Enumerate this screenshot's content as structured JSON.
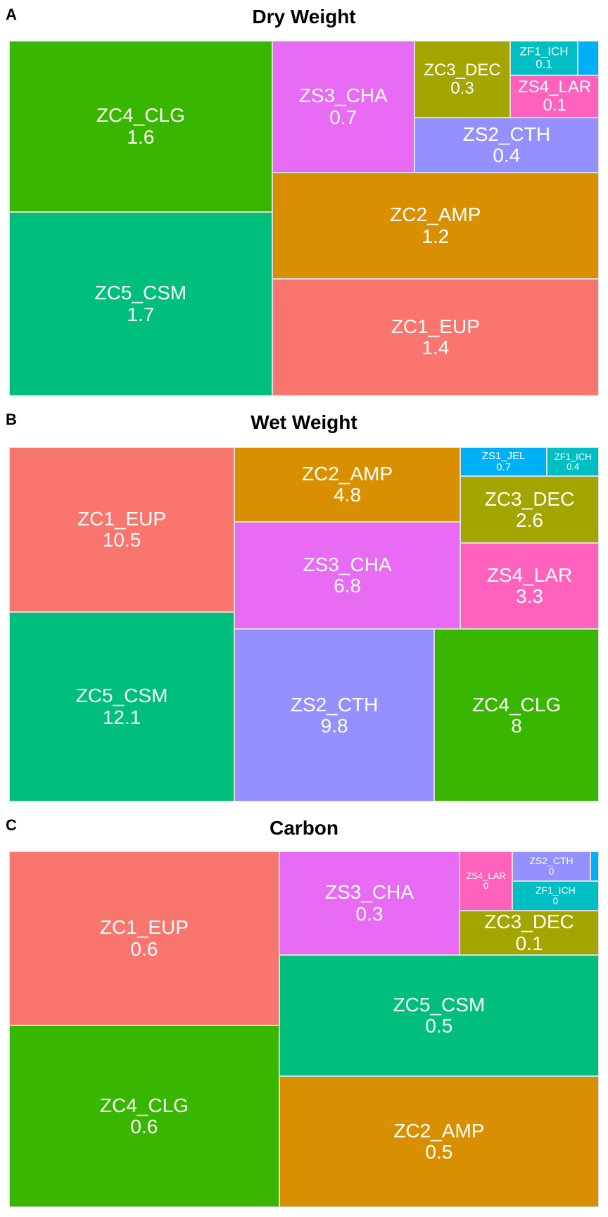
{
  "chart_data": [
    {
      "type": "treemap",
      "panel_label": "A",
      "title": "Dry Weight",
      "tiles": [
        {
          "name": "ZC5_CSM",
          "value_label": "1.7",
          "value": 1.7,
          "color": "#00BF7D"
        },
        {
          "name": "ZC4_CLG",
          "value_label": "1.6",
          "value": 1.6,
          "color": "#39B600"
        },
        {
          "name": "ZC1_EUP",
          "value_label": "1.4",
          "value": 1.4,
          "color": "#F8766D"
        },
        {
          "name": "ZC2_AMP",
          "value_label": "1.2",
          "value": 1.2,
          "color": "#D89000"
        },
        {
          "name": "ZS3_CHA",
          "value_label": "0.7",
          "value": 0.7,
          "color": "#E76BF3"
        },
        {
          "name": "ZS2_CTH",
          "value_label": "0.4",
          "value": 0.4,
          "color": "#9590FF"
        },
        {
          "name": "ZC3_DEC",
          "value_label": "0.3",
          "value": 0.3,
          "color": "#A3A500"
        },
        {
          "name": "ZS4_LAR",
          "value_label": "0.1",
          "value": 0.1,
          "color": "#FF62BC"
        },
        {
          "name": "ZF1_ICH",
          "value_label": "0.1",
          "value": 0.1,
          "color": "#00BFC4"
        },
        {
          "name": "",
          "value_label": "",
          "value": 0.03,
          "color": "#00B0F6"
        }
      ]
    },
    {
      "type": "treemap",
      "panel_label": "B",
      "title": "Wet Weight",
      "tiles": [
        {
          "name": "ZC5_CSM",
          "value_label": "12.1",
          "value": 12.1,
          "color": "#00BF7D"
        },
        {
          "name": "ZC1_EUP",
          "value_label": "10.5",
          "value": 10.5,
          "color": "#F8766D"
        },
        {
          "name": "ZS2_CTH",
          "value_label": "9.8",
          "value": 9.8,
          "color": "#9590FF"
        },
        {
          "name": "ZC4_CLG",
          "value_label": "8",
          "value": 8,
          "color": "#39B600"
        },
        {
          "name": "ZS3_CHA",
          "value_label": "6.8",
          "value": 6.8,
          "color": "#E76BF3"
        },
        {
          "name": "ZC2_AMP",
          "value_label": "4.8",
          "value": 4.8,
          "color": "#D89000"
        },
        {
          "name": "ZS4_LAR",
          "value_label": "3.3",
          "value": 3.3,
          "color": "#FF62BC"
        },
        {
          "name": "ZC3_DEC",
          "value_label": "2.6",
          "value": 2.6,
          "color": "#A3A500"
        },
        {
          "name": "ZS1_JEL",
          "value_label": "0.7",
          "value": 0.7,
          "color": "#00B0F6"
        },
        {
          "name": "ZF1_ICH",
          "value_label": "0.4",
          "value": 0.4,
          "color": "#00BFC4"
        }
      ]
    },
    {
      "type": "treemap",
      "panel_label": "C",
      "title": "Carbon",
      "tiles": [
        {
          "name": "ZC1_EUP",
          "value_label": "0.6",
          "value": 0.6,
          "color": "#F8766D"
        },
        {
          "name": "ZC4_CLG",
          "value_label": "0.6",
          "value": 0.6,
          "color": "#39B600"
        },
        {
          "name": "ZC5_CSM",
          "value_label": "0.5",
          "value": 0.5,
          "color": "#00BF7D"
        },
        {
          "name": "ZC2_AMP",
          "value_label": "0.5",
          "value": 0.5,
          "color": "#D89000"
        },
        {
          "name": "ZS3_CHA",
          "value_label": "0.3",
          "value": 0.3,
          "color": "#E76BF3"
        },
        {
          "name": "ZC3_DEC",
          "value_label": "0.1",
          "value": 0.1,
          "color": "#A3A500"
        },
        {
          "name": "ZS4_LAR",
          "value_label": "0",
          "value": 0.04,
          "color": "#FF62BC"
        },
        {
          "name": "ZS2_CTH",
          "value_label": "0",
          "value": 0.03,
          "color": "#9590FF"
        },
        {
          "name": "ZF1_ICH",
          "value_label": "0",
          "value": 0.03,
          "color": "#00BFC4"
        },
        {
          "name": "",
          "value_label": "",
          "value": 0.005,
          "color": "#00B0F6"
        }
      ]
    }
  ]
}
